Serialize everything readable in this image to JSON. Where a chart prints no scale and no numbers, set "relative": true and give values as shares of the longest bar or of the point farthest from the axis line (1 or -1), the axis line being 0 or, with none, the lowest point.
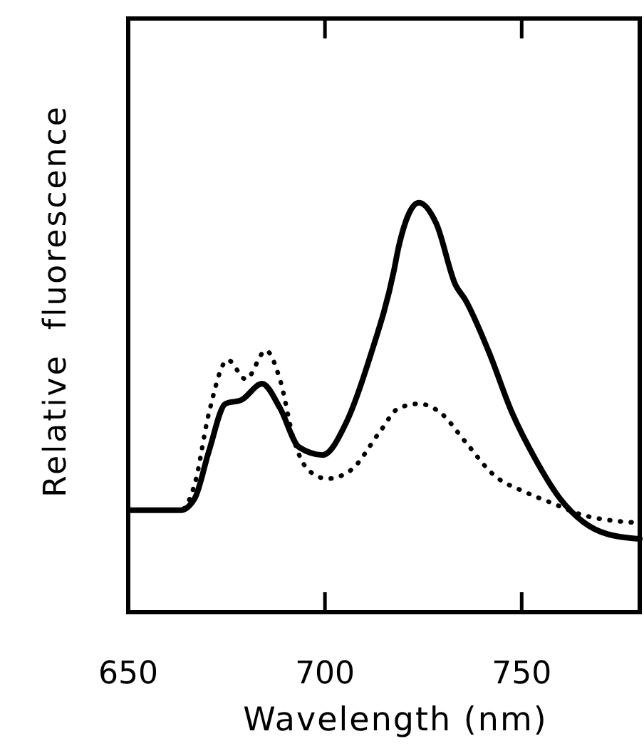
{
  "chart_data": {
    "type": "line",
    "xlabel": "Wavelength (nm)",
    "ylabel": "Relative  fluorescence",
    "relative": true,
    "xlim": [
      650,
      780
    ],
    "xticks": [
      650,
      700,
      750
    ],
    "grid": false,
    "series": [
      {
        "color": "#000000",
        "line_style": "solid",
        "x": [
          650.6,
          663.3,
          666.9,
          670.5,
          674.7,
          678.9,
          684,
          688.6,
          693.4,
          699.4,
          705.4,
          711.5,
          717.5,
          718.7,
          723.9,
          728.3,
          733.2,
          735.6,
          741.6,
          747.6,
          753.7,
          759.7,
          765.7,
          771.7,
          780
        ],
        "values": [
          0.249,
          0.249,
          0.278,
          0.393,
          0.509,
          0.519,
          0.558,
          0.498,
          0.403,
          0.384,
          0.463,
          0.625,
          0.833,
          0.891,
          1.0,
          0.949,
          0.799,
          0.764,
          0.637,
          0.486,
          0.37,
          0.278,
          0.22,
          0.191,
          0.179
        ]
      },
      {
        "color": "#000000",
        "line_style": "dotted",
        "x": [
          650.6,
          663.3,
          666.9,
          670.5,
          675.3,
          679.9,
          685,
          688.6,
          692.2,
          695.8,
          700.6,
          706.6,
          713.9,
          718.7,
          723.9,
          729.5,
          735.6,
          742.8,
          751.2,
          757.3,
          765.7,
          780
        ],
        "values": [
          0.249,
          0.249,
          0.313,
          0.486,
          0.616,
          0.569,
          0.639,
          0.567,
          0.417,
          0.347,
          0.326,
          0.347,
          0.44,
          0.498,
          0.509,
          0.486,
          0.417,
          0.336,
          0.292,
          0.268,
          0.237,
          0.218
        ]
      }
    ]
  }
}
